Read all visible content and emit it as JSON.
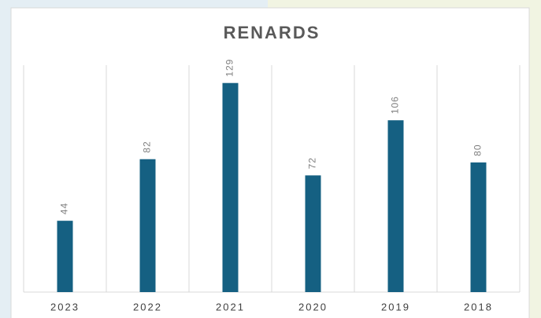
{
  "chart_data": {
    "type": "bar",
    "title": "RENARDS",
    "categories": [
      "2023",
      "2022",
      "2021",
      "2020",
      "2019",
      "2018"
    ],
    "values": [
      44,
      82,
      129,
      72,
      106,
      80
    ],
    "color": "#156082",
    "ylim": [
      0,
      140
    ]
  }
}
